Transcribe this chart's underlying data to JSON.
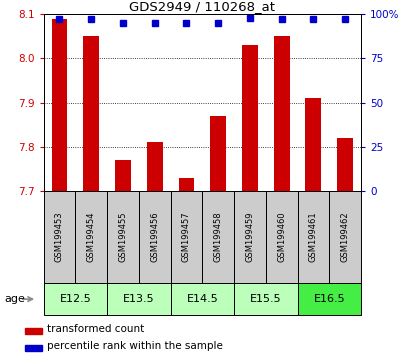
{
  "title": "GDS2949 / 110268_at",
  "samples": [
    "GSM199453",
    "GSM199454",
    "GSM199455",
    "GSM199456",
    "GSM199457",
    "GSM199458",
    "GSM199459",
    "GSM199460",
    "GSM199461",
    "GSM199462"
  ],
  "red_values": [
    8.09,
    8.05,
    7.77,
    7.81,
    7.73,
    7.87,
    8.03,
    8.05,
    7.91,
    7.82
  ],
  "blue_values": [
    97,
    97,
    95,
    95,
    95,
    95,
    98,
    97,
    97,
    97
  ],
  "ylim_left": [
    7.7,
    8.1
  ],
  "ylim_right": [
    0,
    100
  ],
  "yticks_left": [
    7.7,
    7.8,
    7.9,
    8.0,
    8.1
  ],
  "yticks_right": [
    0,
    25,
    50,
    75,
    100
  ],
  "age_groups": [
    {
      "label": "E12.5",
      "start": 0,
      "end": 2
    },
    {
      "label": "E13.5",
      "start": 2,
      "end": 4
    },
    {
      "label": "E14.5",
      "start": 4,
      "end": 6
    },
    {
      "label": "E15.5",
      "start": 6,
      "end": 8
    },
    {
      "label": "E16.5",
      "start": 8,
      "end": 10
    }
  ],
  "age_colors": [
    "#bbffbb",
    "#bbffbb",
    "#bbffbb",
    "#bbffbb",
    "#44ee44"
  ],
  "red_color": "#cc0000",
  "blue_color": "#0000cc",
  "bar_width": 0.5,
  "tick_color_left": "#cc0000",
  "tick_color_right": "#0000cc",
  "sample_box_color": "#cccccc",
  "legend_red_label": "transformed count",
  "legend_blue_label": "percentile rank within the sample",
  "fig_width": 4.15,
  "fig_height": 3.54,
  "dpi": 100
}
